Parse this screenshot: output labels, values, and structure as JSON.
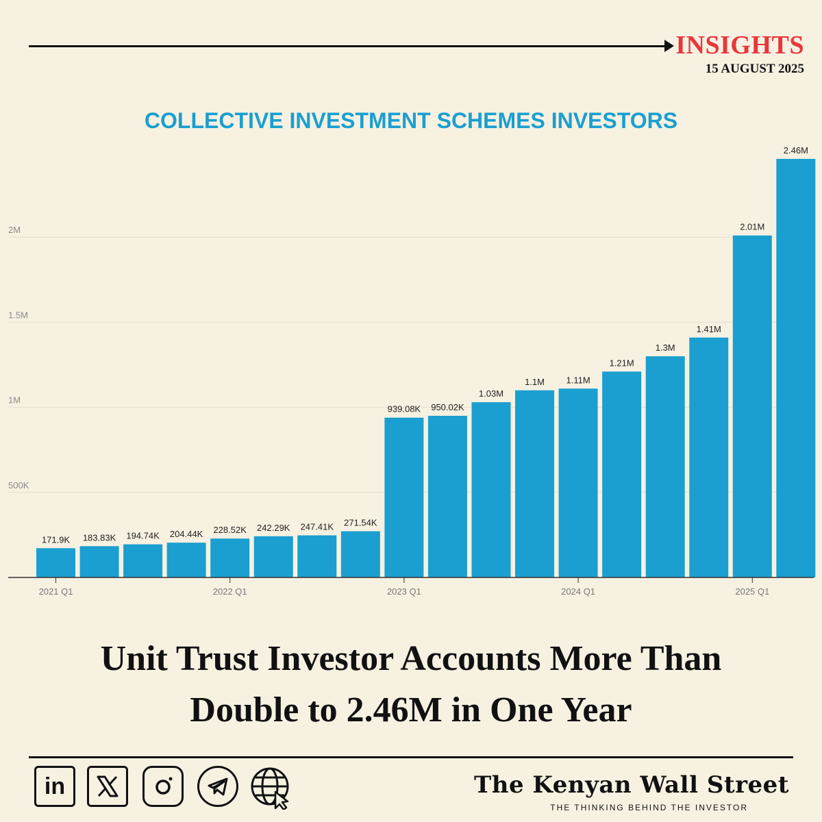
{
  "header": {
    "insights_label": "INSIGHTS",
    "date": "15 AUGUST 2025"
  },
  "chart_data": {
    "type": "bar",
    "title": "COLLECTIVE INVESTMENT SCHEMES INVESTORS",
    "xlabel": "",
    "ylabel": "",
    "ylim": [
      0,
      2500000
    ],
    "grid": true,
    "categories": [
      "2021 Q1",
      "2021 Q2",
      "2021 Q3",
      "2021 Q4",
      "2022 Q1",
      "2022 Q2",
      "2022 Q3",
      "2022 Q4",
      "2023 Q1",
      "2023 Q2",
      "2023 Q3",
      "2023 Q4",
      "2024 Q1",
      "2024 Q2",
      "2024 Q3",
      "2024 Q4",
      "2025 Q1",
      "2025 Q2"
    ],
    "values": [
      171900,
      183830,
      194740,
      204440,
      228520,
      242290,
      247410,
      271540,
      939080,
      950020,
      1030000,
      1100000,
      1110000,
      1210000,
      1300000,
      1410000,
      2010000,
      2460000
    ],
    "data_labels": [
      "171.9K",
      "183.83K",
      "194.74K",
      "204.44K",
      "228.52K",
      "242.29K",
      "247.41K",
      "271.54K",
      "939.08K",
      "950.02K",
      "1.03M",
      "1.1M",
      "1.11M",
      "1.21M",
      "1.3M",
      "1.41M",
      "2.01M",
      "2.46M"
    ],
    "x_tick_labels": [
      "2021 Q1",
      "2022 Q1",
      "2023 Q1",
      "2024 Q1",
      "2025 Q1"
    ],
    "x_tick_categories": [
      "2021 Q1",
      "2022 Q1",
      "2023 Q1",
      "2024 Q1",
      "2025 Q1"
    ],
    "y_ticks": [
      500000,
      1000000,
      1500000,
      2000000
    ],
    "y_tick_labels": [
      "500K",
      "1M",
      "1.5M",
      "2M"
    ],
    "bar_color": "#1a9fd0"
  },
  "headline": {
    "line1": "Unit Trust Investor Accounts More Than",
    "line2": "Double to 2.46M in One Year"
  },
  "footer": {
    "icons": [
      "linkedin-icon",
      "x-icon",
      "instagram-icon",
      "telegram-icon",
      "website-icon"
    ],
    "linkedin_text": "in",
    "brand": "The Kenyan Wall Street",
    "tagline": "THE THINKING BEHIND THE INVESTOR"
  }
}
